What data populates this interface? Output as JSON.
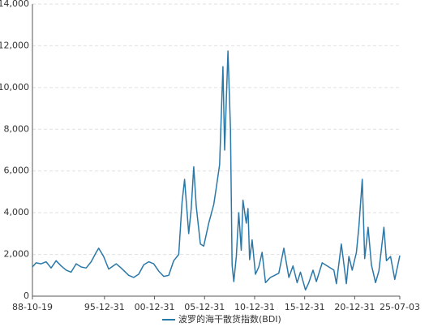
{
  "chart_data": {
    "type": "line",
    "x": [
      "88-10-19",
      "89-03-01",
      "89-09-01",
      "90-03-01",
      "90-09-01",
      "91-03-01",
      "91-09-01",
      "92-03-01",
      "92-09-01",
      "93-03-01",
      "93-09-01",
      "94-03-01",
      "94-09-01",
      "95-03-01",
      "95-06-01",
      "95-12-01",
      "96-06-01",
      "97-03-01",
      "97-09-01",
      "98-06-01",
      "98-12-01",
      "99-06-01",
      "99-12-01",
      "00-06-01",
      "00-12-01",
      "01-06-01",
      "01-12-01",
      "02-06-01",
      "02-12-01",
      "03-06-01",
      "03-10-01",
      "04-01-01",
      "04-06-01",
      "04-09-01",
      "04-12-01",
      "05-03-01",
      "05-08-01",
      "05-12-01",
      "06-06-01",
      "06-12-01",
      "07-03-01",
      "07-07-01",
      "07-11-01",
      "08-01-01",
      "08-05-01",
      "08-08-01",
      "08-10-01",
      "08-12-01",
      "09-03-01",
      "09-06-01",
      "09-09-01",
      "09-11-01",
      "10-03-01",
      "10-05-01",
      "10-07-01",
      "10-10-01",
      "11-02-01",
      "11-06-01",
      "11-10-01",
      "12-02-01",
      "12-08-01",
      "13-06-01",
      "13-12-01",
      "14-06-01",
      "14-11-01",
      "15-04-01",
      "15-08-01",
      "16-02-01",
      "16-06-01",
      "16-11-01",
      "17-03-01",
      "17-10-01",
      "18-06-01",
      "18-12-01",
      "19-03-01",
      "19-09-01",
      "20-03-01",
      "20-06-01",
      "20-10-01",
      "21-03-01",
      "21-06-01",
      "21-10-01",
      "22-01-01",
      "22-05-01",
      "22-09-01",
      "23-02-01",
      "23-06-01",
      "23-12-01",
      "24-03-01",
      "24-08-01",
      "25-01-01",
      "25-05-01",
      "25-07-03"
    ],
    "series": [
      {
        "name": "波罗的海干散货指数(BDI)",
        "color": "#2a78a8",
        "values": [
          1400,
          1600,
          1550,
          1650,
          1350,
          1700,
          1450,
          1250,
          1150,
          1550,
          1400,
          1350,
          1650,
          2100,
          2300,
          1900,
          1300,
          1550,
          1350,
          1000,
          900,
          1050,
          1500,
          1650,
          1550,
          1200,
          950,
          1000,
          1700,
          2000,
          4500,
          5600,
          3000,
          4200,
          6200,
          4300,
          2500,
          2400,
          3500,
          4400,
          5200,
          6300,
          11000,
          7000,
          11750,
          8000,
          1500,
          700,
          1900,
          4000,
          2200,
          4600,
          3500,
          4200,
          1750,
          2700,
          1050,
          1400,
          2100,
          650,
          900,
          1100,
          2300,
          900,
          1450,
          650,
          1150,
          300,
          650,
          1250,
          700,
          1600,
          1400,
          1250,
          600,
          2500,
          600,
          1900,
          1250,
          2100,
          3300,
          5600,
          1800,
          3300,
          1500,
          650,
          1200,
          3300,
          1700,
          1900,
          800,
          1550,
          1950
        ]
      }
    ],
    "xlim": [
      "88-10-19",
      "25-07-03"
    ],
    "xticks": [
      "88-10-19",
      "95-12-31",
      "00-12-31",
      "05-12-31",
      "10-12-31",
      "15-12-31",
      "20-12-31",
      "25-07-03"
    ],
    "ylim": [
      0,
      14000
    ],
    "yticks": [
      0,
      {
        "value": 2000,
        "label": "2,000"
      },
      {
        "value": 4000,
        "label": "4,000"
      },
      {
        "value": 6000,
        "label": "6,000"
      },
      {
        "value": 8000,
        "label": "8,000"
      },
      {
        "value": 10000,
        "label": "10,000"
      },
      {
        "value": 12000,
        "label": "12,000"
      },
      {
        "value": 14000,
        "label": "14,000"
      }
    ],
    "grid": true,
    "legend": "bottom"
  }
}
